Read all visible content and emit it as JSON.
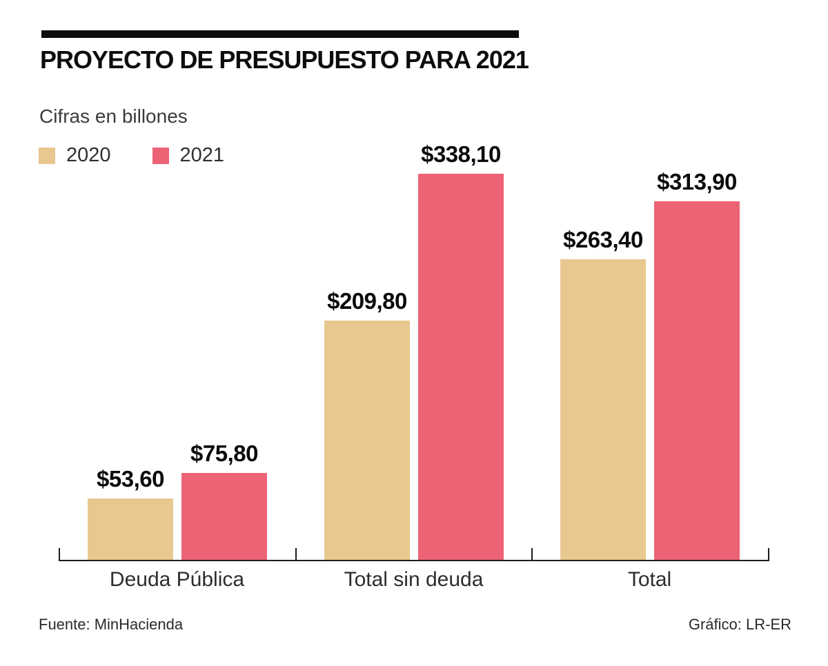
{
  "header": {
    "title": "PROYECTO DE PRESUPUESTO PARA 2021",
    "subtitle": "Cifras en billones"
  },
  "legend": [
    {
      "label": "2020",
      "color": "#E8C88F"
    },
    {
      "label": "2021",
      "color": "#ED6376"
    }
  ],
  "chart_data": {
    "type": "bar",
    "title": "PROYECTO DE PRESUPUESTO PARA 2021",
    "subtitle": "Cifras en billones",
    "categories": [
      "Deuda Pública",
      "Total sin deuda",
      "Total"
    ],
    "series": [
      {
        "name": "2020",
        "color": "#E8C88F",
        "values": [
          53.6,
          209.8,
          263.4
        ],
        "labels": [
          "$53,60",
          "$209,80",
          "$263,40"
        ]
      },
      {
        "name": "2021",
        "color": "#ED6376",
        "values": [
          75.8,
          338.1,
          313.9
        ],
        "labels": [
          "$75,80",
          "$338,10",
          "$313,90"
        ]
      }
    ],
    "ylim": [
      0,
      350
    ],
    "grid": false,
    "legend_position": "top-left",
    "value_prefix": "$",
    "unit": "billones"
  },
  "footer": {
    "source": "Fuente: MinHacienda",
    "credit": "Gráfico: LR-ER"
  }
}
